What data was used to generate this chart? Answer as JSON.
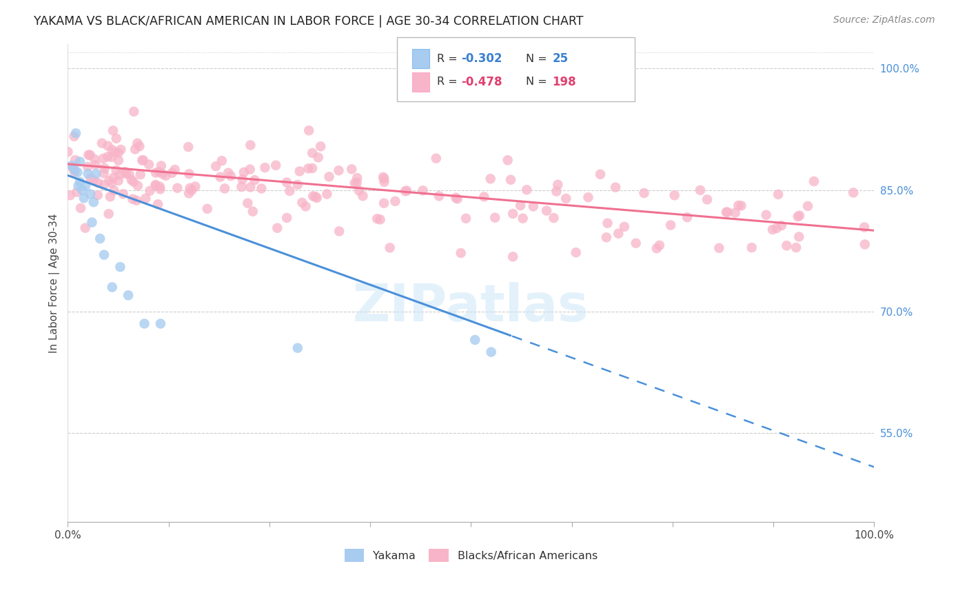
{
  "title": "YAKAMA VS BLACK/AFRICAN AMERICAN IN LABOR FORCE | AGE 30-34 CORRELATION CHART",
  "source": "Source: ZipAtlas.com",
  "ylabel": "In Labor Force | Age 30-34",
  "xlim": [
    0.0,
    1.0
  ],
  "ylim": [
    0.44,
    1.03
  ],
  "right_yticks": [
    0.55,
    0.7,
    0.85,
    1.0
  ],
  "right_yticklabels": [
    "55.0%",
    "70.0%",
    "85.0%",
    "100.0%"
  ],
  "legend": {
    "R_blue": "-0.302",
    "N_blue": "25",
    "R_pink": "-0.478",
    "N_pink": "198"
  },
  "blue_scatter_color": "#A8CCF0",
  "pink_scatter_color": "#F8B4C8",
  "blue_line_color": "#4A90D9",
  "pink_line_color": "#F07090",
  "legend_label_blue": "Yakama",
  "legend_label_pink": "Blacks/African Americans",
  "watermark": "ZIPatlas",
  "blue_line_start_y": 0.868,
  "blue_line_end_x": 0.55,
  "blue_line_end_y": 0.67,
  "blue_line_dash_end_y": 0.555,
  "pink_line_start_y": 0.882,
  "pink_line_end_y": 0.8
}
